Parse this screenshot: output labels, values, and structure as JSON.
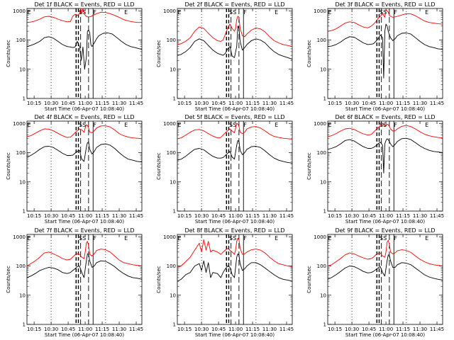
{
  "chart_data": [
    {
      "type": "line",
      "title": "Det 1f BLACK = Events, RED = LLD",
      "xlabel": "Start Time (06-Apr-07 10:08:40)",
      "ylabel": "Counts/sec"
    },
    {
      "type": "line",
      "title": "Det 2f BLACK = Events, RED = LLD",
      "xlabel": "Start Time (06-Apr-07 10:08:40)",
      "ylabel": "Counts/sec"
    },
    {
      "type": "line",
      "title": "Det 3f BLACK = Events, RED = LLD",
      "xlabel": "Start Time (06-Apr-07 10:08:40)",
      "ylabel": "Counts/sec"
    },
    {
      "type": "line",
      "title": "Det 4f BLACK = Events, RED = LLD",
      "xlabel": "Start Time (06-Apr-07 10:08:40)",
      "ylabel": "Counts/sec"
    },
    {
      "type": "line",
      "title": "Det 5f BLACK = Events, RED = LLD",
      "xlabel": "Start Time (06-Apr-07 10:08:40)",
      "ylabel": "Counts/sec"
    },
    {
      "type": "line",
      "title": "Det 6f BLACK = Events, RED = LLD",
      "xlabel": "Start Time (06-Apr-07 10:08:40)",
      "ylabel": "Counts/sec"
    },
    {
      "type": "line",
      "title": "Det 7f BLACK = Events, RED = LLD",
      "xlabel": "Start Time (06-Apr-07 10:08:40)",
      "ylabel": "Counts/sec"
    },
    {
      "type": "line",
      "title": "Det 8f BLACK = Events, RED = LLD",
      "xlabel": "Start Time (06-Apr-07 10:08:40)",
      "ylabel": "Counts/sec"
    },
    {
      "type": "line",
      "title": "Det 9f BLACK = Events, RED = LLD",
      "xlabel": "Start Time (06-Apr-07 10:08:40)",
      "ylabel": "Counts/sec"
    }
  ],
  "shared": {
    "x_ticks": [
      "10:15",
      "10:30",
      "10:45",
      "11:00",
      "11:15",
      "11:30",
      "11:45"
    ],
    "x_tick_minutes": [
      15,
      30,
      45,
      60,
      75,
      90,
      105
    ],
    "xlim_minutes": [
      8.67,
      110
    ],
    "y_ticks": [
      "1",
      "10",
      "100",
      "1000"
    ],
    "y_tick_values": [
      1,
      10,
      100,
      1000
    ],
    "ylim": [
      1,
      1200
    ],
    "yscale": "log",
    "markers": [
      "E",
      "SS",
      "F",
      "E"
    ],
    "series_names": [
      "Events",
      "LLD"
    ],
    "colors": {
      "events": "#000000",
      "lld": "#ff0000"
    }
  },
  "series": [
    {
      "events_x": [
        8.67,
        12,
        16,
        20,
        24,
        28,
        32,
        36,
        40,
        44,
        47,
        49,
        51,
        53,
        55,
        56.5,
        58,
        59.5,
        61,
        62,
        63,
        64,
        65,
        66,
        68,
        70,
        72,
        76,
        80,
        84,
        88,
        92,
        96,
        100,
        104,
        108,
        110
      ],
      "events_y": [
        60,
        65,
        75,
        90,
        120,
        130,
        115,
        90,
        70,
        60,
        58,
        55,
        57,
        90,
        60,
        20,
        58,
        10,
        25,
        200,
        220,
        180,
        70,
        60,
        80,
        110,
        140,
        170,
        175,
        160,
        120,
        90,
        70,
        60,
        55,
        50,
        48
      ],
      "lld_x": [
        8.67,
        12,
        16,
        20,
        24,
        28,
        32,
        36,
        40,
        44,
        47,
        49,
        51,
        53,
        55,
        56,
        57,
        58,
        59,
        60,
        61,
        62,
        63,
        64,
        65,
        67,
        70,
        74,
        78,
        82,
        86,
        90,
        94,
        98,
        102,
        106,
        110
      ],
      "lld_y": [
        400,
        410,
        450,
        520,
        620,
        650,
        600,
        520,
        460,
        420,
        430,
        650,
        760,
        700,
        800,
        1200,
        800,
        1300,
        900,
        700,
        650,
        620,
        620,
        620,
        640,
        700,
        800,
        900,
        880,
        800,
        700,
        600,
        500,
        450,
        420,
        400,
        400
      ]
    },
    {
      "events_x": [
        8.67,
        12,
        16,
        20,
        24,
        28,
        32,
        36,
        40,
        44,
        47,
        49,
        51,
        53,
        55,
        57,
        59,
        61,
        62,
        63,
        64,
        66,
        68,
        70,
        74,
        78,
        82,
        86,
        90,
        94,
        98,
        102,
        106,
        110
      ],
      "events_y": [
        30,
        32,
        40,
        55,
        90,
        110,
        95,
        65,
        45,
        35,
        32,
        30,
        35,
        50,
        60,
        28,
        25,
        60,
        300,
        250,
        90,
        45,
        55,
        70,
        95,
        110,
        100,
        80,
        55,
        40,
        32,
        28,
        25,
        22
      ],
      "lld_x": [
        8.67,
        12,
        16,
        20,
        24,
        28,
        32,
        36,
        40,
        44,
        47,
        49,
        51,
        53,
        55,
        57,
        59,
        60,
        61,
        62,
        63,
        64,
        66,
        68,
        70,
        74,
        78,
        82,
        86,
        90,
        94,
        98,
        102,
        106,
        110
      ],
      "lld_y": [
        70,
        75,
        90,
        120,
        200,
        280,
        250,
        170,
        120,
        95,
        90,
        100,
        160,
        260,
        350,
        250,
        200,
        250,
        500,
        650,
        600,
        250,
        140,
        130,
        160,
        220,
        260,
        240,
        190,
        130,
        95,
        80,
        70,
        65,
        60
      ]
    },
    {
      "events_x": [
        8.67,
        12,
        16,
        20,
        24,
        28,
        32,
        36,
        40,
        44,
        47,
        49,
        51,
        53,
        55,
        57,
        58,
        59,
        60,
        61,
        62,
        63,
        64,
        66,
        68,
        70,
        74,
        78,
        82,
        86,
        90,
        94,
        98,
        102,
        106,
        110
      ],
      "events_y": [
        60,
        62,
        70,
        85,
        110,
        130,
        125,
        100,
        80,
        70,
        72,
        75,
        90,
        110,
        150,
        120,
        5,
        200,
        350,
        300,
        200,
        150,
        120,
        95,
        110,
        140,
        170,
        175,
        160,
        120,
        90,
        70,
        60,
        55,
        50,
        48
      ],
      "lld_x": [
        8.67,
        12,
        16,
        20,
        24,
        28,
        32,
        36,
        40,
        44,
        47,
        49,
        51,
        53,
        55,
        57,
        59,
        60,
        61,
        62,
        63,
        64,
        66,
        68,
        70,
        74,
        78,
        82,
        86,
        90,
        94,
        98,
        102,
        106,
        110
      ],
      "lld_y": [
        200,
        210,
        240,
        300,
        380,
        420,
        400,
        330,
        280,
        260,
        300,
        350,
        420,
        550,
        650,
        800,
        600,
        1100,
        1000,
        900,
        700,
        650,
        600,
        620,
        650,
        720,
        800,
        780,
        680,
        550,
        450,
        400,
        380,
        360,
        350
      ]
    },
    {
      "events_x": [
        8.67,
        12,
        16,
        20,
        24,
        28,
        32,
        36,
        40,
        44,
        47,
        49,
        51,
        53,
        55,
        57,
        59,
        61,
        62,
        63,
        64,
        66,
        68,
        70,
        74,
        78,
        82,
        86,
        90,
        94,
        98,
        102,
        106,
        110
      ],
      "events_y": [
        70,
        80,
        100,
        130,
        160,
        165,
        150,
        120,
        95,
        80,
        80,
        82,
        95,
        110,
        120,
        60,
        50,
        150,
        220,
        230,
        130,
        90,
        110,
        150,
        190,
        200,
        180,
        140,
        100,
        75,
        60,
        55,
        50,
        48
      ],
      "lld_x": [
        8.67,
        12,
        16,
        20,
        24,
        28,
        32,
        36,
        40,
        44,
        47,
        49,
        51,
        53,
        55,
        57,
        59,
        60,
        61,
        62,
        63,
        64,
        66,
        68,
        70,
        74,
        78,
        82,
        86,
        90,
        94,
        98,
        102,
        106,
        110
      ],
      "lld_y": [
        350,
        380,
        460,
        560,
        650,
        640,
        560,
        460,
        380,
        330,
        340,
        400,
        480,
        560,
        650,
        600,
        500,
        700,
        900,
        850,
        700,
        500,
        480,
        560,
        700,
        820,
        830,
        760,
        600,
        450,
        380,
        340,
        320,
        310,
        300
      ]
    },
    {
      "events_x": [
        8.67,
        12,
        16,
        20,
        24,
        28,
        32,
        36,
        40,
        44,
        47,
        49,
        51,
        53,
        55,
        57,
        59,
        61,
        62,
        63,
        64,
        66,
        68,
        70,
        74,
        78,
        82,
        86,
        90,
        94,
        98,
        102,
        106,
        110
      ],
      "events_y": [
        55,
        60,
        75,
        100,
        130,
        140,
        125,
        95,
        75,
        65,
        65,
        68,
        80,
        95,
        110,
        70,
        60,
        180,
        260,
        240,
        120,
        85,
        100,
        130,
        160,
        165,
        150,
        115,
        85,
        65,
        55,
        50,
        46,
        44
      ],
      "lld_x": [
        8.67,
        12,
        16,
        20,
        24,
        28,
        32,
        36,
        40,
        44,
        47,
        49,
        51,
        53,
        55,
        57,
        59,
        60,
        61,
        62,
        63,
        64,
        66,
        68,
        70,
        74,
        78,
        82,
        86,
        90,
        94,
        98,
        102,
        106,
        110
      ],
      "lld_y": [
        300,
        320,
        400,
        500,
        600,
        620,
        560,
        450,
        370,
        320,
        330,
        400,
        480,
        560,
        650,
        550,
        480,
        700,
        1000,
        950,
        800,
        500,
        450,
        500,
        650,
        760,
        780,
        700,
        560,
        430,
        360,
        330,
        310,
        300,
        290
      ]
    },
    {
      "events_x": [
        8.67,
        12,
        16,
        20,
        24,
        28,
        32,
        36,
        40,
        44,
        47,
        49,
        51,
        53,
        55,
        57,
        58,
        59,
        60,
        61,
        62,
        63,
        64,
        66,
        68,
        70,
        74,
        78,
        82,
        86,
        90,
        94,
        98,
        102,
        106,
        110
      ],
      "events_y": [
        130,
        140,
        160,
        200,
        260,
        280,
        250,
        200,
        160,
        140,
        140,
        150,
        170,
        200,
        230,
        180,
        20,
        200,
        260,
        300,
        280,
        240,
        200,
        160,
        190,
        240,
        300,
        310,
        280,
        220,
        170,
        140,
        120,
        110,
        105,
        100
      ],
      "lld_x": [
        8.67,
        12,
        16,
        20,
        24,
        28,
        32,
        36,
        40,
        44,
        47,
        49,
        51,
        53,
        55,
        57,
        59,
        60,
        61,
        62,
        63,
        64,
        66,
        68,
        70,
        74,
        78,
        82,
        86,
        90,
        94,
        98,
        102,
        106,
        110
      ],
      "lld_y": [
        350,
        380,
        450,
        550,
        650,
        680,
        620,
        520,
        440,
        400,
        420,
        500,
        600,
        700,
        850,
        1000,
        800,
        900,
        950,
        900,
        800,
        650,
        550,
        560,
        650,
        800,
        850,
        780,
        650,
        520,
        430,
        380,
        350,
        330,
        320
      ]
    },
    {
      "events_x": [
        8.67,
        12,
        16,
        20,
        24,
        28,
        32,
        36,
        40,
        44,
        47,
        49,
        51,
        53,
        55,
        57,
        59,
        61,
        62,
        63,
        64,
        66,
        68,
        70,
        74,
        78,
        82,
        86,
        90,
        94,
        98,
        102,
        106,
        110
      ],
      "events_y": [
        40,
        45,
        55,
        70,
        80,
        90,
        85,
        75,
        60,
        55,
        60,
        70,
        80,
        95,
        100,
        60,
        40,
        150,
        260,
        250,
        150,
        90,
        100,
        130,
        150,
        145,
        120,
        95,
        70,
        55,
        45,
        40,
        38,
        35
      ],
      "lld_x": [
        8.67,
        12,
        16,
        20,
        24,
        28,
        32,
        36,
        40,
        44,
        47,
        49,
        51,
        53,
        55,
        57,
        59,
        60,
        61,
        62,
        63,
        64,
        66,
        68,
        70,
        74,
        78,
        82,
        86,
        90,
        94,
        98,
        102,
        106,
        110
      ],
      "lld_y": [
        100,
        120,
        150,
        200,
        280,
        300,
        260,
        220,
        180,
        160,
        170,
        200,
        240,
        260,
        250,
        200,
        180,
        300,
        600,
        700,
        500,
        250,
        220,
        260,
        340,
        380,
        360,
        300,
        220,
        160,
        130,
        120,
        110,
        105,
        100
      ]
    },
    {
      "events_x": [
        8.67,
        12,
        16,
        20,
        24,
        28,
        30,
        32,
        34,
        36,
        38,
        40,
        44,
        47,
        49,
        51,
        53,
        55,
        57,
        59,
        61,
        62,
        63,
        64,
        66,
        68,
        70,
        74,
        78,
        82,
        86,
        90,
        94,
        98,
        102,
        106,
        110
      ],
      "events_y": [
        30,
        35,
        50,
        60,
        100,
        120,
        70,
        150,
        60,
        130,
        40,
        60,
        55,
        40,
        60,
        80,
        100,
        90,
        50,
        40,
        200,
        260,
        230,
        120,
        70,
        80,
        100,
        130,
        130,
        110,
        85,
        65,
        50,
        40,
        35,
        33,
        30
      ],
      "lld_x": [
        8.67,
        12,
        16,
        20,
        24,
        28,
        30,
        32,
        34,
        36,
        38,
        40,
        44,
        47,
        49,
        51,
        53,
        55,
        57,
        59,
        60,
        61,
        62,
        63,
        64,
        66,
        68,
        70,
        74,
        78,
        82,
        86,
        90,
        94,
        98,
        102,
        106,
        110
      ],
      "lld_y": [
        90,
        100,
        140,
        200,
        350,
        600,
        300,
        800,
        350,
        700,
        300,
        350,
        300,
        250,
        300,
        350,
        400,
        350,
        300,
        250,
        350,
        700,
        900,
        800,
        400,
        250,
        260,
        300,
        360,
        380,
        350,
        280,
        200,
        150,
        120,
        110,
        100,
        95
      ]
    },
    {
      "events_x": [
        8.67,
        12,
        16,
        20,
        24,
        28,
        32,
        36,
        40,
        44,
        47,
        49,
        51,
        53,
        55,
        57,
        59,
        61,
        62,
        63,
        64,
        66,
        68,
        70,
        74,
        78,
        82,
        86,
        90,
        94,
        98,
        102,
        106,
        110
      ],
      "events_y": [
        35,
        40,
        50,
        65,
        85,
        100,
        95,
        80,
        65,
        58,
        60,
        65,
        75,
        85,
        95,
        60,
        45,
        150,
        240,
        230,
        150,
        90,
        90,
        110,
        130,
        125,
        110,
        85,
        65,
        50,
        42,
        38,
        35,
        33
      ],
      "lld_x": [
        8.67,
        12,
        16,
        20,
        24,
        28,
        32,
        36,
        40,
        44,
        47,
        49,
        51,
        53,
        55,
        57,
        59,
        60,
        61,
        62,
        63,
        64,
        66,
        68,
        70,
        74,
        78,
        82,
        86,
        90,
        94,
        98,
        102,
        106,
        110
      ],
      "lld_y": [
        100,
        110,
        140,
        180,
        240,
        280,
        260,
        220,
        190,
        170,
        180,
        200,
        240,
        270,
        280,
        220,
        200,
        300,
        650,
        750,
        550,
        300,
        260,
        280,
        330,
        360,
        340,
        290,
        220,
        170,
        140,
        120,
        110,
        105,
        100
      ]
    }
  ]
}
